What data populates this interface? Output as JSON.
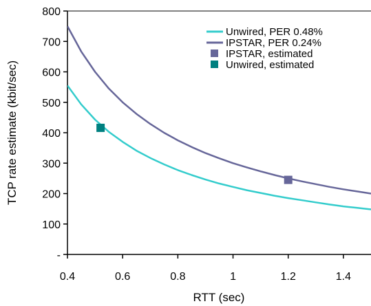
{
  "chart_data": {
    "type": "line",
    "title": "",
    "xlabel": "RTT (sec)",
    "ylabel": "TCP rate estimate (kbit/sec)",
    "xlim": [
      0.4,
      1.5
    ],
    "ylim": [
      0,
      800
    ],
    "x_ticks": [
      "0.4",
      "0.6",
      "0.8",
      "1",
      "1.2",
      "1.4"
    ],
    "y_ticks": [
      "-",
      "100",
      "200",
      "300",
      "400",
      "500",
      "600",
      "700",
      "800"
    ],
    "grid": false,
    "legend_position": "top-right",
    "series": [
      {
        "name": "Unwired, PER 0.48%",
        "kind": "line",
        "color": "#33CCCC",
        "x": [
          0.4,
          0.45,
          0.5,
          0.55,
          0.6,
          0.65,
          0.7,
          0.75,
          0.8,
          0.85,
          0.9,
          0.95,
          1.0,
          1.05,
          1.1,
          1.15,
          1.2,
          1.25,
          1.3,
          1.35,
          1.4,
          1.45,
          1.5
        ],
        "y": [
          555,
          493,
          443,
          403,
          370,
          341,
          317,
          296,
          277,
          261,
          246,
          233,
          222,
          211,
          202,
          193,
          185,
          178,
          171,
          164,
          158,
          153,
          148
        ]
      },
      {
        "name": "IPSTAR, PER 0.24%",
        "kind": "line",
        "color": "#666699",
        "x": [
          0.4,
          0.45,
          0.5,
          0.55,
          0.6,
          0.65,
          0.7,
          0.75,
          0.8,
          0.85,
          0.9,
          0.95,
          1.0,
          1.05,
          1.1,
          1.15,
          1.2,
          1.25,
          1.3,
          1.35,
          1.4,
          1.45,
          1.5
        ],
        "y": [
          750,
          667,
          600,
          545,
          500,
          462,
          429,
          400,
          375,
          353,
          333,
          316,
          300,
          286,
          273,
          261,
          250,
          240,
          231,
          222,
          214,
          207,
          200
        ]
      },
      {
        "name": "IPSTAR, estimated",
        "kind": "marker",
        "color": "#666699",
        "x": [
          1.2
        ],
        "y": [
          245
        ]
      },
      {
        "name": "Unwired, estimated",
        "kind": "marker",
        "color": "#008080",
        "x": [
          0.52
        ],
        "y": [
          416
        ]
      }
    ]
  }
}
